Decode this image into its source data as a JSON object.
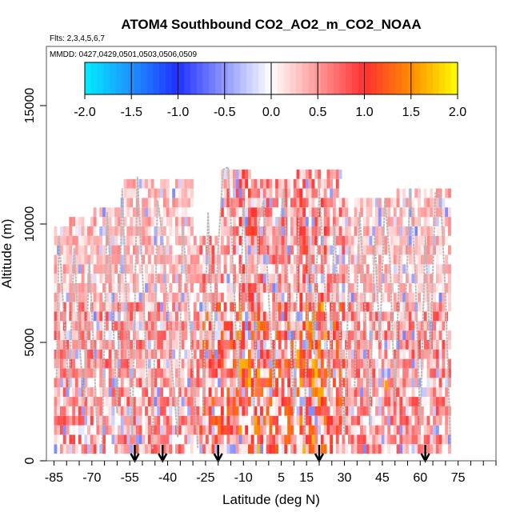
{
  "chart_data": {
    "type": "heatmap",
    "title": "ATOM4 Southbound CO2_AO2_m_CO2_NOAA",
    "flights_label": "Flts: 2,3,4,5,6,7",
    "dates_label": "MMDD: 0427,0429,0501,0503,0506,0509",
    "xlabel": "Latitude (deg N)",
    "ylabel": "Altitude (m)",
    "xlim": [
      -88,
      90
    ],
    "ylim": [
      0,
      17500
    ],
    "x_ticks": [
      -85,
      -70,
      -55,
      -40,
      -25,
      -10,
      5,
      15,
      30,
      45,
      60,
      75
    ],
    "x_minor_step": 5,
    "y_ticks": [
      0,
      5000,
      10000,
      15000
    ],
    "colorbar": {
      "range": [
        -2.0,
        2.0
      ],
      "tick_labels": [
        "-2.0",
        "-1.5",
        "-1.0",
        "-0.5",
        "0.0",
        "0.5",
        "1.0",
        "1.5",
        "2.0"
      ],
      "colors": {
        "neg_max": "#00eeff",
        "neg_mid": "#1e90ff",
        "neg_1": "#2030ff",
        "zero": "#ffffff",
        "pos_1": "#ff3030",
        "pos_mid": "#ff8c00",
        "pos_max": "#ffff00"
      }
    },
    "arrow_latitudes": [
      -53,
      -42,
      -20,
      20,
      62
    ],
    "flight_tracks": [
      {
        "x": [
          -84,
          -83,
          -81,
          -79,
          -77,
          -75,
          -73,
          -71,
          -69,
          -68
        ],
        "y": [
          3500,
          9500,
          6000,
          3000,
          9000,
          5000,
          2500,
          8500,
          4000,
          1500
        ]
      },
      {
        "x": [
          -66,
          -64,
          -62,
          -60,
          -58,
          -56,
          -54,
          -52,
          -50,
          -48
        ],
        "y": [
          500,
          10500,
          7000,
          2000,
          11500,
          6000,
          1000,
          12000,
          8000,
          3000
        ]
      },
      {
        "x": [
          -46,
          -44,
          -42,
          -40,
          -38,
          -36,
          -34,
          -32,
          -30,
          -28
        ],
        "y": [
          500,
          11000,
          9500,
          6500,
          3500,
          1000,
          10000,
          7000,
          4000,
          500
        ]
      },
      {
        "x": [
          -26,
          -24,
          -22,
          -20,
          -18,
          -16,
          -14,
          -12,
          -10,
          -8
        ],
        "y": [
          2000,
          10500,
          4500,
          9000,
          12300,
          12400,
          8000,
          3000,
          11000,
          6000
        ]
      },
      {
        "x": [
          -6,
          -4,
          -2,
          0,
          2,
          4,
          6,
          8,
          10,
          12
        ],
        "y": [
          1500,
          10000,
          11000,
          7000,
          3000,
          9500,
          11500,
          6500,
          2000,
          10500
        ]
      },
      {
        "x": [
          14,
          16,
          18,
          20,
          22,
          24,
          26,
          28,
          30,
          32
        ],
        "y": [
          500,
          9500,
          4500,
          11500,
          8000,
          2500,
          10000,
          6000,
          1000,
          9000
        ]
      },
      {
        "x": [
          34,
          36,
          38,
          40,
          42,
          44,
          46,
          48,
          50,
          52
        ],
        "y": [
          3000,
          10500,
          7000,
          1500,
          9500,
          5000,
          11000,
          8500,
          2500,
          9000
        ]
      },
      {
        "x": [
          54,
          56,
          58,
          60,
          62,
          64,
          66,
          68,
          70,
          72
        ],
        "y": [
          6000,
          11500,
          8000,
          1500,
          9500,
          4500,
          11300,
          11300,
          7000,
          600
        ]
      }
    ]
  }
}
